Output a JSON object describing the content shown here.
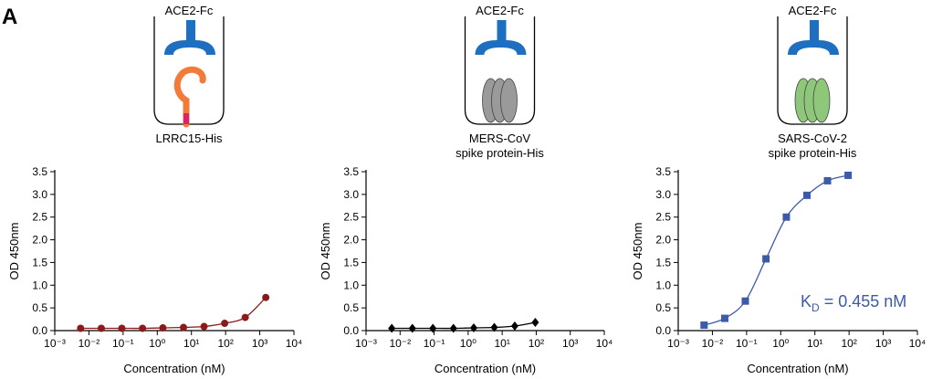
{
  "panel_label": "A",
  "chart_data": [
    {
      "type": "line",
      "x_scale": "log",
      "xlabel": "Concentration (nM)",
      "ylabel": "OD 450nm",
      "labels_above": [
        "ACE2-Fc"
      ],
      "labels_below": [
        "LRRC15-His"
      ],
      "xlim": [
        0.001,
        10000
      ],
      "xticks": [
        {
          "value": 0.001,
          "label": "10⁻³"
        },
        {
          "value": 0.01,
          "label": "10⁻²"
        },
        {
          "value": 0.1,
          "label": "10⁻¹"
        },
        {
          "value": 1,
          "label": "10⁰"
        },
        {
          "value": 10,
          "label": "10¹"
        },
        {
          "value": 100,
          "label": "10²"
        },
        {
          "value": 1000,
          "label": "10³"
        },
        {
          "value": 10000,
          "label": "10⁴"
        }
      ],
      "ylim": [
        0,
        3.5
      ],
      "yticks": [
        {
          "value": 0,
          "label": "0.0"
        },
        0.5,
        {
          "value": 1,
          "label": "1.0"
        },
        1.5,
        {
          "value": 2,
          "label": "2.0"
        },
        2.5,
        {
          "value": 3,
          "label": "3.0"
        },
        3.5
      ],
      "marker": "circle",
      "color": "#8b1a1a",
      "x": [
        0.0057,
        0.023,
        0.092,
        0.37,
        1.46,
        5.86,
        23.4,
        93.8,
        375,
        1500
      ],
      "values": [
        0.05,
        0.05,
        0.05,
        0.05,
        0.06,
        0.07,
        0.09,
        0.16,
        0.29,
        0.73
      ]
    },
    {
      "type": "line",
      "x_scale": "log",
      "xlabel": "Concentration (nM)",
      "ylabel": "OD 450nm",
      "labels_above": [
        "ACE2-Fc"
      ],
      "labels_below": [
        "MERS-CoV",
        "spike protein-His"
      ],
      "xlim": [
        0.001,
        10000
      ],
      "xticks": [
        {
          "value": 0.001,
          "label": "10⁻³"
        },
        {
          "value": 0.01,
          "label": "10⁻²"
        },
        {
          "value": 0.1,
          "label": "10⁻¹"
        },
        {
          "value": 1,
          "label": "10⁰"
        },
        {
          "value": 10,
          "label": "10¹"
        },
        {
          "value": 100,
          "label": "10²"
        },
        {
          "value": 1000,
          "label": "10³"
        },
        {
          "value": 10000,
          "label": "10⁴"
        }
      ],
      "ylim": [
        0,
        3.5
      ],
      "yticks": [
        {
          "value": 0,
          "label": "0.0"
        },
        0.5,
        {
          "value": 1,
          "label": "1.0"
        },
        1.5,
        {
          "value": 2,
          "label": "2.0"
        },
        2.5,
        {
          "value": 3,
          "label": "3.0"
        },
        3.5
      ],
      "marker": "diamond",
      "color": "#000000",
      "x": [
        0.0057,
        0.023,
        0.092,
        0.37,
        1.46,
        5.86,
        23.4,
        93.8
      ],
      "values": [
        0.05,
        0.05,
        0.05,
        0.05,
        0.06,
        0.07,
        0.1,
        0.18
      ]
    },
    {
      "type": "line",
      "x_scale": "log",
      "xlabel": "Concentration (nM)",
      "ylabel": "OD 450nm",
      "labels_above": [
        "ACE2-Fc"
      ],
      "labels_below": [
        "SARS-CoV-2",
        "spike protein-His"
      ],
      "annotation": [
        "K",
        "D",
        " = 0.455 nM"
      ],
      "xlim": [
        0.001,
        10000
      ],
      "xticks": [
        {
          "value": 0.001,
          "label": "10⁻³"
        },
        {
          "value": 0.01,
          "label": "10⁻²"
        },
        {
          "value": 0.1,
          "label": "10⁻¹"
        },
        {
          "value": 1,
          "label": "10⁰"
        },
        {
          "value": 10,
          "label": "10¹"
        },
        {
          "value": 100,
          "label": "10²"
        },
        {
          "value": 1000,
          "label": "10³"
        },
        {
          "value": 10000,
          "label": "10⁴"
        }
      ],
      "ylim": [
        0,
        3.5
      ],
      "yticks": [
        {
          "value": 0,
          "label": "0.0"
        },
        0.5,
        {
          "value": 1,
          "label": "1.0"
        },
        1.5,
        {
          "value": 2,
          "label": "2.0"
        },
        2.5,
        {
          "value": 3,
          "label": "3.0"
        },
        3.5
      ],
      "marker": "square",
      "color": "#3d5aa8",
      "x": [
        0.0057,
        0.023,
        0.092,
        0.37,
        1.46,
        5.86,
        23.4,
        93.8
      ],
      "values": [
        0.12,
        0.27,
        0.65,
        1.58,
        2.5,
        2.98,
        3.3,
        3.42
      ]
    }
  ]
}
